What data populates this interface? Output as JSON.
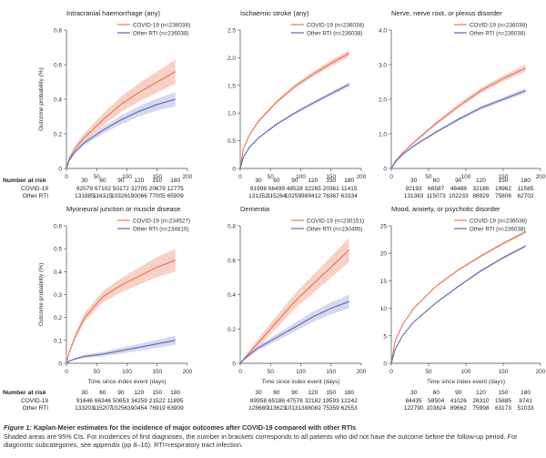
{
  "colors": {
    "covid": "#e8735a",
    "covid_band": "#f6c2b2",
    "rti": "#5f67b5",
    "rti_band": "#c7cbe8"
  },
  "risk": {
    "label": "Number at risk",
    "times": [
      "30",
      "60",
      "90",
      "120",
      "150",
      "180"
    ],
    "row_covid": "COVID-19",
    "row_rti": "Other RTI"
  },
  "axis": {
    "xlabel": "Time since index event (days)",
    "ylabel": "Outcome probability (%)"
  },
  "chart_data": [
    {
      "type": "line",
      "title": "Intracranial haemorrhage (any)",
      "xlim": [
        0,
        200
      ],
      "ylim": [
        0,
        0.8
      ],
      "xticks": [
        0,
        50,
        100,
        150,
        200
      ],
      "yticks": [
        0,
        0.2,
        0.4,
        0.6,
        0.8
      ],
      "ytick_labels": [
        "0",
        "0.2",
        "0.4",
        "0.6",
        "0.8"
      ],
      "series": [
        {
          "name": "COVID-19 (n=236038)",
          "x": [
            0,
            5,
            15,
            30,
            60,
            90,
            120,
            150,
            180
          ],
          "y": [
            0,
            0.06,
            0.12,
            0.18,
            0.28,
            0.37,
            0.44,
            0.5,
            0.56
          ],
          "band": 0.07
        },
        {
          "name": "Other RTI (n=236038)",
          "x": [
            0,
            5,
            15,
            30,
            60,
            90,
            120,
            150,
            180
          ],
          "y": [
            0,
            0.05,
            0.1,
            0.15,
            0.22,
            0.28,
            0.33,
            0.37,
            0.4
          ],
          "band": 0.04
        }
      ],
      "risk_covid": [
        "92579",
        "67102",
        "50172",
        "32705",
        "20679",
        "12775"
      ],
      "risk_rti": [
        "131885",
        "116315",
        "103261",
        "90066",
        "77005",
        "65909"
      ]
    },
    {
      "type": "line",
      "title": "Ischaemic stroke (any)",
      "xlim": [
        0,
        200
      ],
      "ylim": [
        0,
        2.5
      ],
      "xticks": [
        0,
        50,
        100,
        150,
        200
      ],
      "yticks": [
        0,
        0.5,
        1,
        1.5,
        2,
        2.5
      ],
      "ytick_labels": [
        "0",
        "0.5",
        "1.0",
        "1.5",
        "2.0",
        "2.5"
      ],
      "series": [
        {
          "name": "COVID-19 (n=236038)",
          "x": [
            0,
            5,
            15,
            30,
            60,
            90,
            120,
            150,
            180
          ],
          "y": [
            0,
            0.35,
            0.6,
            0.85,
            1.2,
            1.48,
            1.7,
            1.9,
            2.08
          ],
          "band": 0.06
        },
        {
          "name": "Other RTI (n=236038)",
          "x": [
            0,
            5,
            15,
            30,
            60,
            90,
            120,
            150,
            180
          ],
          "y": [
            0,
            0.2,
            0.38,
            0.55,
            0.8,
            1.0,
            1.18,
            1.35,
            1.52
          ],
          "band": 0.04
        }
      ],
      "risk_covid": [
        "91998",
        "66499",
        "48528",
        "32265",
        "20361",
        "11415"
      ],
      "risk_rti": [
        "131352",
        "115264",
        "102599",
        "89412",
        "76367",
        "63334"
      ]
    },
    {
      "type": "line",
      "title": "Nerve, nerve root, or plexus disorder",
      "xlim": [
        0,
        200
      ],
      "ylim": [
        0,
        4.0
      ],
      "xticks": [
        0,
        50,
        100,
        150,
        200
      ],
      "yticks": [
        0,
        1,
        2,
        3,
        4
      ],
      "ytick_labels": [
        "0",
        "1.0",
        "2.0",
        "3.0",
        "4.0"
      ],
      "series": [
        {
          "name": "COVID-19 (n=236038)",
          "x": [
            0,
            5,
            15,
            30,
            60,
            90,
            120,
            150,
            180
          ],
          "y": [
            0,
            0.2,
            0.45,
            0.75,
            1.3,
            1.8,
            2.25,
            2.6,
            2.9
          ],
          "band": 0.1
        },
        {
          "name": "Other RTI (n=236038)",
          "x": [
            0,
            5,
            15,
            30,
            60,
            90,
            120,
            150,
            180
          ],
          "y": [
            0,
            0.18,
            0.4,
            0.65,
            1.05,
            1.42,
            1.75,
            2.0,
            2.25
          ],
          "band": 0.07
        }
      ],
      "risk_covid": [
        "92193",
        "66587",
        "48488",
        "32186",
        "19962",
        "11585"
      ],
      "risk_rti": [
        "131363",
        "115073",
        "102233",
        "88929",
        "75806",
        "62702"
      ]
    },
    {
      "type": "line",
      "title": "Myoneural junction or muscle disease",
      "xlim": [
        0,
        200
      ],
      "ylim": [
        0,
        0.6
      ],
      "xticks": [
        0,
        50,
        100,
        150,
        200
      ],
      "yticks": [
        0,
        0.1,
        0.2,
        0.3,
        0.4,
        0.5,
        0.6
      ],
      "ytick_labels": [
        "0",
        "0.1",
        "0.2",
        "0.3",
        "0.4",
        "0.5",
        "0.6"
      ],
      "series": [
        {
          "name": "COVID-19 (n=234527)",
          "x": [
            0,
            5,
            15,
            30,
            60,
            90,
            120,
            150,
            180
          ],
          "y": [
            0,
            0.05,
            0.12,
            0.2,
            0.29,
            0.34,
            0.38,
            0.42,
            0.45
          ],
          "band": 0.05
        },
        {
          "name": "Other RTI (n=234810)",
          "x": [
            0,
            5,
            15,
            30,
            60,
            90,
            120,
            150,
            180
          ],
          "y": [
            0,
            0.01,
            0.02,
            0.03,
            0.04,
            0.055,
            0.07,
            0.085,
            0.1
          ],
          "band": 0.02
        }
      ],
      "risk_covid": [
        "91646",
        "66346",
        "50653",
        "34259",
        "21522",
        "11895"
      ],
      "risk_rti": [
        "133203",
        "115207",
        "102563",
        "90454",
        "76919",
        "63909"
      ]
    },
    {
      "type": "line",
      "title": "Dementia",
      "xlim": [
        0,
        200
      ],
      "ylim": [
        0,
        0.8
      ],
      "xticks": [
        0,
        50,
        100,
        150,
        200
      ],
      "yticks": [
        0,
        0.2,
        0.4,
        0.6,
        0.8
      ],
      "ytick_labels": [
        "0",
        "0.2",
        "0.4",
        "0.6",
        "0.8"
      ],
      "series": [
        {
          "name": "COVID-19 (n=230151)",
          "x": [
            0,
            5,
            15,
            30,
            60,
            90,
            120,
            150,
            180
          ],
          "y": [
            0,
            0.02,
            0.06,
            0.12,
            0.24,
            0.36,
            0.46,
            0.56,
            0.66
          ],
          "band": 0.07
        },
        {
          "name": "Other RTI (n=230495)",
          "x": [
            0,
            5,
            15,
            30,
            60,
            90,
            120,
            150,
            180
          ],
          "y": [
            0,
            0.02,
            0.05,
            0.09,
            0.15,
            0.21,
            0.27,
            0.32,
            0.36
          ],
          "band": 0.04
        }
      ],
      "risk_covid": [
        "89958",
        "65186",
        "47578",
        "32182",
        "19593",
        "12242"
      ],
      "risk_rti": [
        "128680",
        "113623",
        "101313",
        "88082",
        "75359",
        "62553"
      ]
    },
    {
      "type": "line",
      "title": "Mood, anxiety, or psychotic disorder",
      "xlim": [
        0,
        200
      ],
      "ylim": [
        0,
        25
      ],
      "xticks": [
        0,
        50,
        100,
        150,
        200
      ],
      "yticks": [
        0,
        5,
        10,
        15,
        20,
        25
      ],
      "ytick_labels": [
        "0",
        "5",
        "10",
        "15",
        "20",
        "25"
      ],
      "series": [
        {
          "name": "COVID-19 (n=236038)",
          "x": [
            0,
            5,
            15,
            30,
            60,
            90,
            120,
            150,
            180
          ],
          "y": [
            0,
            4,
            7,
            10,
            14,
            17,
            19.5,
            21.8,
            23.9
          ],
          "band": 0.3
        },
        {
          "name": "Other RTI (n=236038)",
          "x": [
            0,
            5,
            15,
            30,
            60,
            90,
            120,
            150,
            180
          ],
          "y": [
            0,
            2.5,
            5,
            7.5,
            11,
            14,
            16.8,
            19.2,
            21.3
          ],
          "band": 0.25
        }
      ],
      "risk_covid": [
        "84435",
        "58504",
        "41026",
        "26310",
        "15885",
        "8741"
      ],
      "risk_rti": [
        "122790",
        "103824",
        "89662",
        "75998",
        "63173",
        "51033"
      ]
    }
  ],
  "caption": {
    "lead": "Figure 1:",
    "title": " Kaplan-Meier estimates for the incidence of major outcomes after COVID-19 compared with other RTIs",
    "body": "Shaded areas are 95% CIs. For incidences of first diagnoses, the number in brackets corresponds to all patients who did not have the outcome before the follow-up period. For diagnostic subcategories, see appendix (pp 8–10). RTI=respiratory tract infection."
  }
}
